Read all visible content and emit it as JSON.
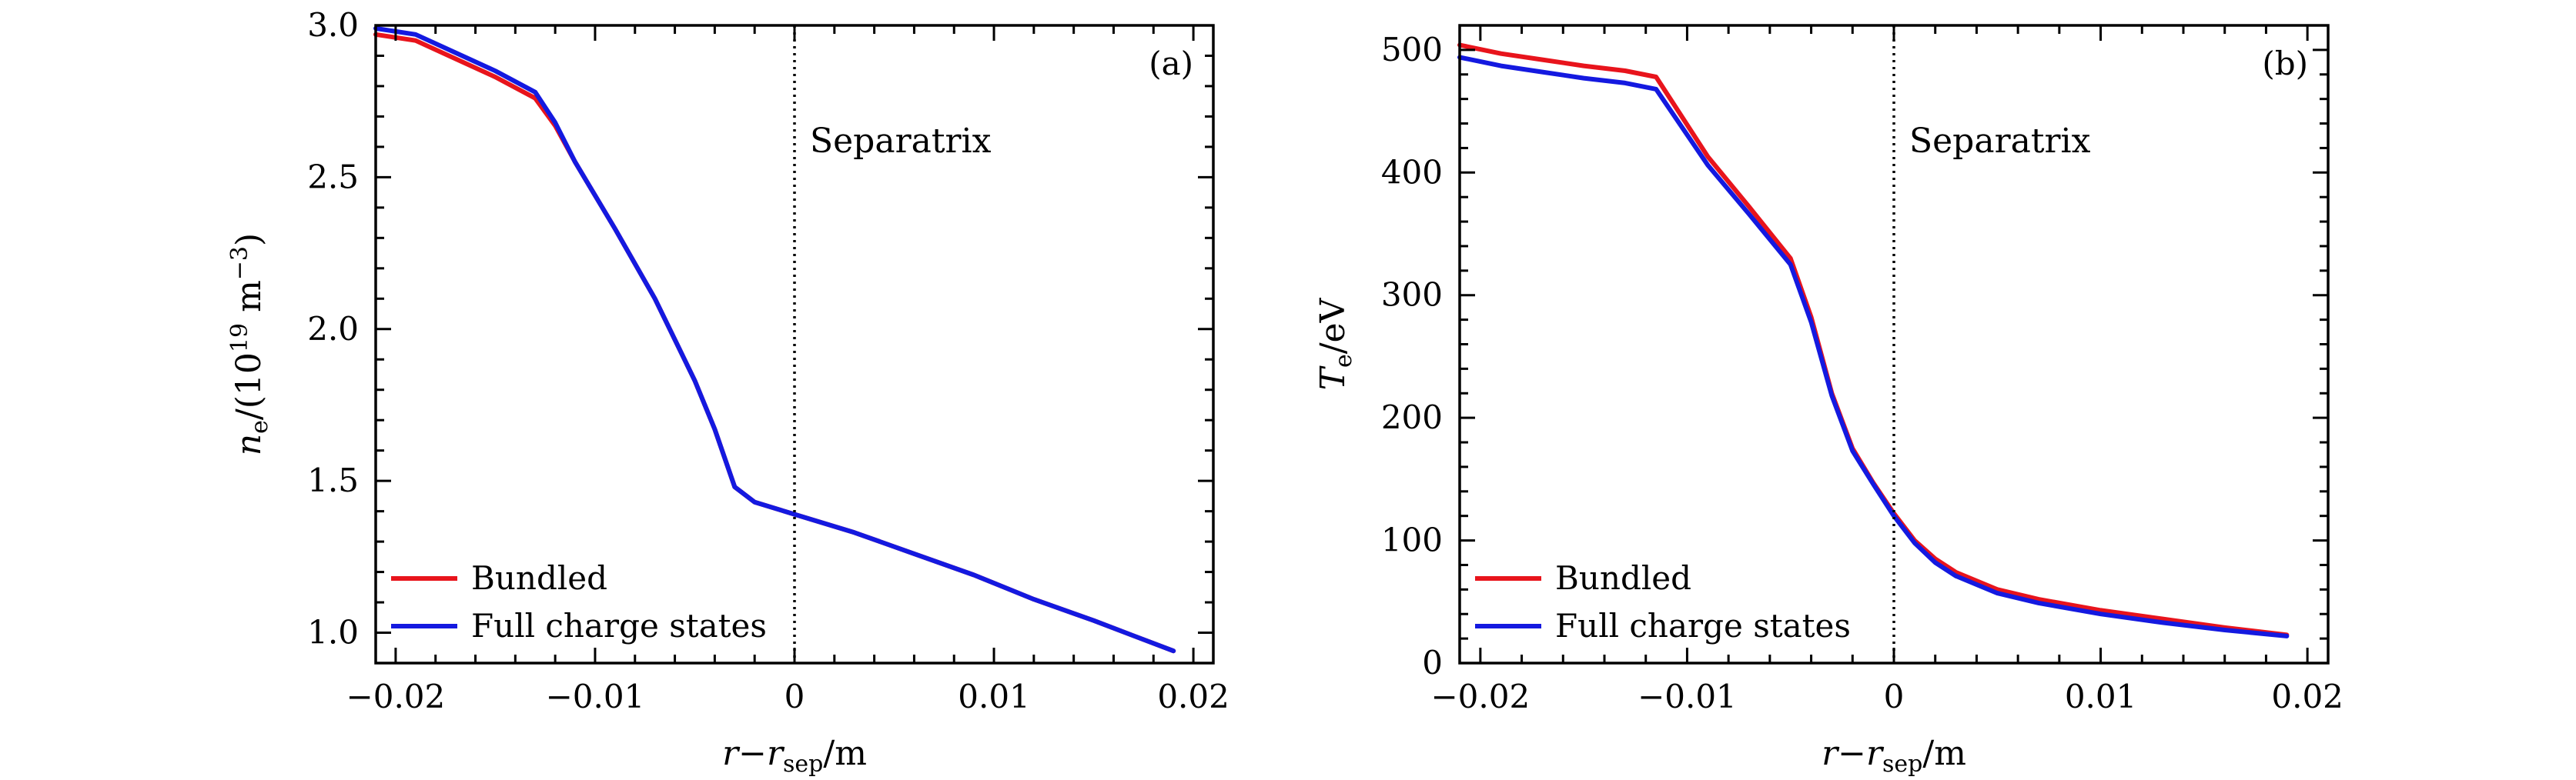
{
  "chart_data": [
    {
      "type": "line",
      "panel_label": "(a)",
      "xlabel": {
        "main": "r",
        "minus": "−",
        "sub_var": "r",
        "sub": "sep",
        "unit": "/m"
      },
      "ylabel": {
        "var": "n",
        "sub": "e",
        "unit_pre": "/(10",
        "exp": "19",
        "unit_mid": " m",
        "exp2": "−3",
        "unit_post": ")"
      },
      "xlim": [
        -0.021,
        0.021
      ],
      "ylim": [
        0.9,
        3.0
      ],
      "xticks": [
        -0.02,
        -0.01,
        0,
        0.01,
        0.02
      ],
      "xtick_labels": [
        "−0.02",
        "−0.01",
        "0",
        "0.01",
        "0.02"
      ],
      "yticks": [
        1.0,
        1.5,
        2.0,
        2.5,
        3.0
      ],
      "ytick_labels": [
        "1.0",
        "1.5",
        "2.0",
        "2.5",
        "3.0"
      ],
      "vline": {
        "x": 0,
        "label": "Separatrix"
      },
      "legend_position": "bottom-left",
      "series": [
        {
          "name": "Bundled",
          "color": "#e8141c",
          "x": [
            -0.021,
            -0.019,
            -0.017,
            -0.015,
            -0.013,
            -0.012,
            -0.011,
            -0.009,
            -0.007,
            -0.005,
            -0.004,
            -0.003,
            -0.002,
            0,
            0.003,
            0.006,
            0.009,
            0.012,
            0.015,
            0.017,
            0.019
          ],
          "y": [
            2.97,
            2.95,
            2.89,
            2.83,
            2.76,
            2.67,
            2.55,
            2.33,
            2.1,
            1.83,
            1.67,
            1.48,
            1.43,
            1.39,
            1.33,
            1.26,
            1.19,
            1.11,
            1.04,
            0.99,
            0.94
          ]
        },
        {
          "name": "Full charge states",
          "color": "#1419e0",
          "x": [
            -0.021,
            -0.019,
            -0.017,
            -0.015,
            -0.013,
            -0.012,
            -0.011,
            -0.009,
            -0.007,
            -0.005,
            -0.004,
            -0.003,
            -0.002,
            0,
            0.003,
            0.006,
            0.009,
            0.012,
            0.015,
            0.017,
            0.019
          ],
          "y": [
            2.99,
            2.97,
            2.91,
            2.85,
            2.78,
            2.68,
            2.55,
            2.33,
            2.1,
            1.83,
            1.67,
            1.48,
            1.43,
            1.39,
            1.33,
            1.26,
            1.19,
            1.11,
            1.04,
            0.99,
            0.94
          ]
        }
      ]
    },
    {
      "type": "line",
      "panel_label": "(b)",
      "xlabel": {
        "main": "r",
        "minus": "−",
        "sub_var": "r",
        "sub": "sep",
        "unit": "/m"
      },
      "ylabel": {
        "var": "T",
        "sub": "e",
        "unit_pre": "/eV"
      },
      "xlim": [
        -0.021,
        0.021
      ],
      "ylim": [
        0,
        520
      ],
      "xticks": [
        -0.02,
        -0.01,
        0,
        0.01,
        0.02
      ],
      "xtick_labels": [
        "−0.02",
        "−0.01",
        "0",
        "0.01",
        "0.02"
      ],
      "yticks": [
        0,
        100,
        200,
        300,
        400,
        500
      ],
      "ytick_labels": [
        "0",
        "100",
        "200",
        "300",
        "400",
        "500"
      ],
      "vline": {
        "x": 0,
        "label": "Separatrix"
      },
      "legend_position": "bottom-left",
      "series": [
        {
          "name": "Bundled",
          "color": "#e8141c",
          "x": [
            -0.021,
            -0.019,
            -0.017,
            -0.015,
            -0.013,
            -0.0115,
            -0.009,
            -0.007,
            -0.005,
            -0.004,
            -0.003,
            -0.002,
            -0.001,
            0,
            0.001,
            0.002,
            0.003,
            0.005,
            0.007,
            0.01,
            0.013,
            0.016,
            0.019
          ],
          "y": [
            504,
            497,
            492,
            487,
            483,
            478,
            413,
            372,
            330,
            282,
            220,
            175,
            147,
            122,
            100,
            85,
            74,
            60,
            52,
            43,
            36,
            29,
            23
          ]
        },
        {
          "name": "Full charge states",
          "color": "#1419e0",
          "x": [
            -0.021,
            -0.019,
            -0.017,
            -0.015,
            -0.013,
            -0.0115,
            -0.009,
            -0.007,
            -0.005,
            -0.004,
            -0.003,
            -0.002,
            -0.001,
            0,
            0.001,
            0.002,
            0.003,
            0.005,
            0.007,
            0.01,
            0.013,
            0.016,
            0.019
          ],
          "y": [
            494,
            487,
            482,
            477,
            473,
            468,
            406,
            366,
            325,
            278,
            218,
            173,
            146,
            120,
            98,
            82,
            71,
            57,
            49,
            40,
            33,
            27,
            22
          ]
        }
      ]
    }
  ]
}
